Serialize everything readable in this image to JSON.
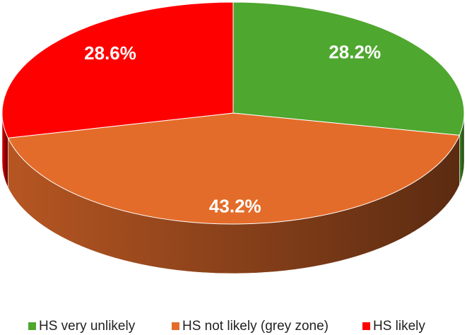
{
  "chart_data": {
    "type": "pie3d",
    "categories": [
      "HS very unlikely",
      "HS not likely (grey zone)",
      "HS likely"
    ],
    "values": [
      28.2,
      43.2,
      28.6
    ],
    "value_labels": [
      "28.2%",
      "43.2%",
      "28.6%"
    ],
    "colors": [
      "#4ea72e",
      "#e46c2a",
      "#ff0000"
    ],
    "legend": "bottom"
  }
}
